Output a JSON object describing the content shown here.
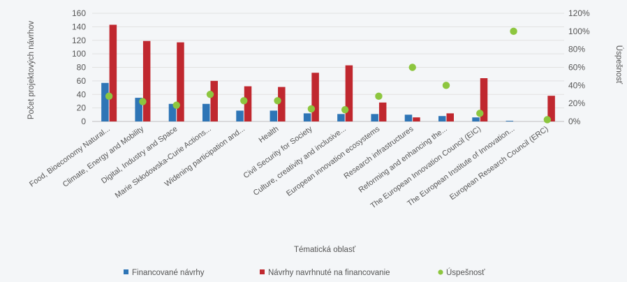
{
  "chart_data": {
    "type": "bar",
    "xlabel": "Tématická oblasť",
    "ylabel": "Počet projektových návrhov",
    "y2label": "Úspešnosť",
    "ylim": [
      0,
      160
    ],
    "yticks": [
      "0",
      "20",
      "40",
      "60",
      "80",
      "100",
      "120",
      "140",
      "160"
    ],
    "y2lim": [
      0,
      120
    ],
    "y2ticks": [
      "0%",
      "20%",
      "40%",
      "60%",
      "80%",
      "100%",
      "120%"
    ],
    "grid": true,
    "legend_position": "bottom",
    "categories": [
      "Food, Bioeconomy Natural...",
      "Climate, Energy and Mobility",
      "Digital, Industry and Space",
      "Marie Skłodowska-Curie Actions...",
      "Widening participation and...",
      "Health",
      "Civil Security for Society",
      "Culture, creativity and inclusive...",
      "European innovation ecosystems",
      "Research infrastructures",
      "Reforming and enhancing the...",
      "The European Innovation Council (EIC)",
      "The European Institute of Innovation...",
      "European Research Council (ERC)"
    ],
    "series": [
      {
        "name": "Financované návrhy",
        "type": "bar",
        "axis": "left",
        "color": "#2e75b6",
        "values": [
          57,
          35,
          26,
          26,
          16,
          16,
          12,
          11,
          11,
          10,
          8,
          6,
          1,
          0
        ]
      },
      {
        "name": "Návrhy navrhnuté na financovanie",
        "type": "bar",
        "axis": "left",
        "color": "#c0282f",
        "values": [
          143,
          119,
          117,
          60,
          52,
          51,
          72,
          83,
          28,
          6,
          12,
          64,
          0,
          38
        ]
      },
      {
        "name": "Úspešnosť",
        "type": "scatter",
        "axis": "right",
        "color": "#8dc63f",
        "values": [
          28,
          22,
          18,
          30,
          23,
          23,
          14,
          13,
          28,
          60,
          40,
          9,
          100,
          2
        ]
      }
    ]
  }
}
